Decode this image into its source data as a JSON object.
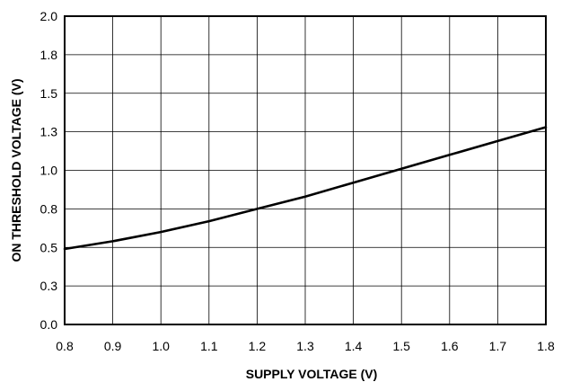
{
  "chart_data": {
    "type": "line",
    "title": "",
    "xlabel": "SUPPLY VOLTAGE (V)",
    "ylabel": "ON THRESHOLD VOLTAGE (V)",
    "xlim": [
      0.8,
      1.8
    ],
    "ylim": [
      0.0,
      2.0
    ],
    "grid": true,
    "xticks": [
      0.8,
      0.9,
      1.0,
      1.1,
      1.2,
      1.3,
      1.4,
      1.5,
      1.6,
      1.7,
      1.8
    ],
    "xtick_labels": [
      "0.8",
      "0.9",
      "1.0",
      "1.1",
      "1.2",
      "1.3",
      "1.4",
      "1.5",
      "1.6",
      "1.7",
      "1.8"
    ],
    "yticks": [
      0.0,
      0.25,
      0.5,
      0.75,
      1.0,
      1.25,
      1.5,
      1.75,
      2.0
    ],
    "ytick_labels": [
      "0.0",
      "0.3",
      "0.5",
      "0.8",
      "1.0",
      "1.3",
      "1.5",
      "1.8",
      "2.0"
    ],
    "series": [
      {
        "x": [
          0.8,
          0.9,
          1.0,
          1.1,
          1.2,
          1.3,
          1.4,
          1.5,
          1.6,
          1.7,
          1.8
        ],
        "y": [
          0.49,
          0.54,
          0.6,
          0.67,
          0.75,
          0.83,
          0.92,
          1.01,
          1.1,
          1.19,
          1.28
        ]
      }
    ]
  }
}
